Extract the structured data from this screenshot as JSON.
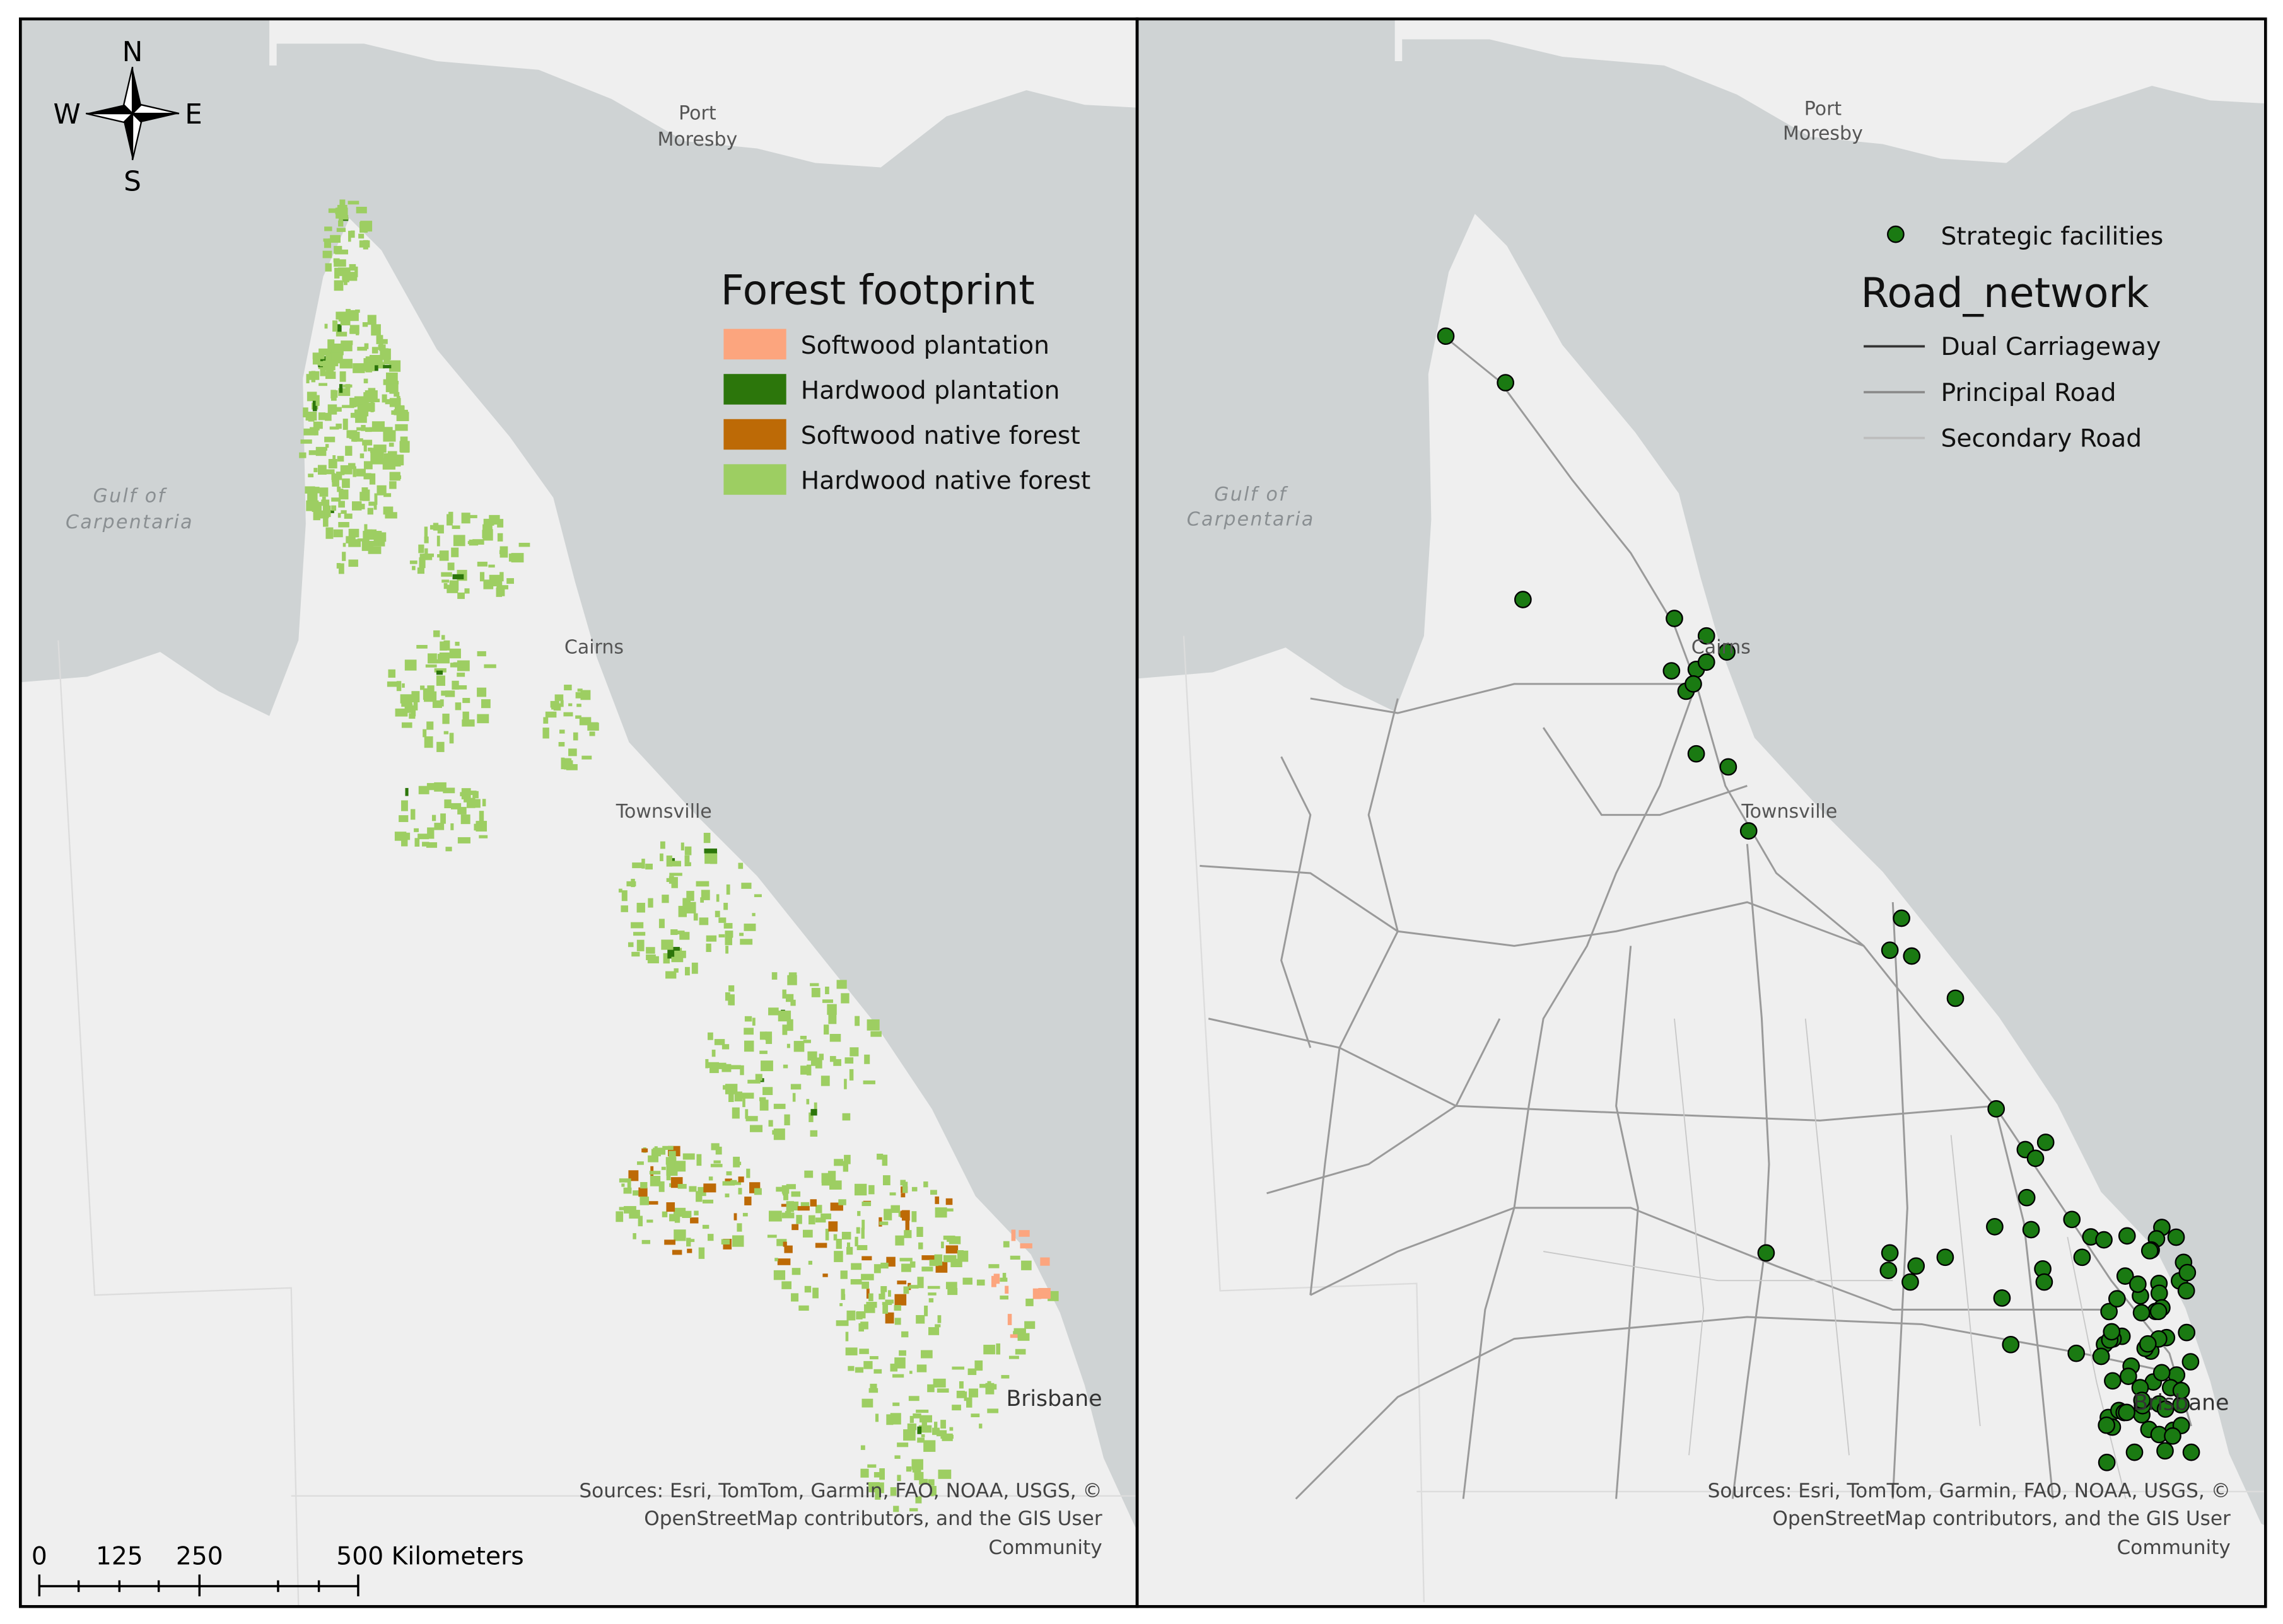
{
  "left_map": {
    "compass": {
      "north": "N",
      "west": "W",
      "east": "E",
      "south": "S"
    },
    "place_labels": {
      "port_moresby": [
        "Port",
        "Moresby"
      ],
      "gulf": [
        "Gulf of",
        "Carpentaria"
      ],
      "cairns": "Cairns",
      "townsville": "Townsville",
      "brisbane": "Brisbane"
    },
    "legend": {
      "title": "Forest footprint",
      "items": [
        {
          "label": "Softwood plantation",
          "color": "#fca57e"
        },
        {
          "label": "Hardwood plantation",
          "color": "#2c760b"
        },
        {
          "label": "Softwood native forest",
          "color": "#bd6a06"
        },
        {
          "label": "Hardwood native forest",
          "color": "#9dce62"
        }
      ]
    },
    "scale_bar": {
      "labels": [
        "0",
        "125",
        "250",
        "500 Kilometers"
      ]
    },
    "sources": [
      "Sources: Esri, TomTom, Garmin, FAO, NOAA, USGS, ©",
      "OpenStreetMap contributors, and the GIS User",
      "Community"
    ]
  },
  "right_map": {
    "place_labels": {
      "port_moresby": [
        "Port",
        "Moresby"
      ],
      "gulf": [
        "Gulf of",
        "Carpentaria"
      ],
      "cairns": "Cairns",
      "townsville": "Townsville",
      "brisbane": "Brisbane"
    },
    "legend": {
      "facilities": {
        "label": "Strategic facilities",
        "color": "#1a7a12"
      },
      "title": "Road_network",
      "items": [
        {
          "label": "Dual Carriageway",
          "color": "#333333"
        },
        {
          "label": "Principal Road",
          "color": "#8a8a8a"
        },
        {
          "label": "Secondary Road",
          "color": "#bdbdbd"
        }
      ]
    },
    "sources": [
      "Sources: Esri, TomTom, Garmin, FAO, NOAA, USGS, ©",
      "OpenStreetMap contributors, and the GIS User",
      "Community"
    ]
  }
}
